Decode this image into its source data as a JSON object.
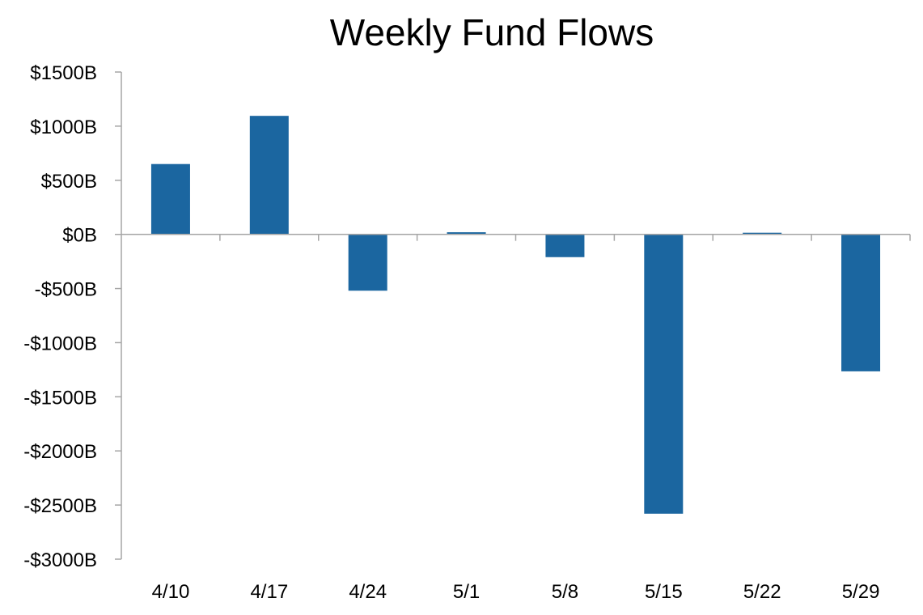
{
  "chart_data": {
    "type": "bar",
    "title": "Weekly Fund Flows",
    "xlabel": "",
    "ylabel": "",
    "categories": [
      "4/10",
      "4/17",
      "4/24",
      "5/1",
      "5/8",
      "5/15",
      "5/22",
      "5/29"
    ],
    "values": [
      650,
      1095,
      -520,
      20,
      -210,
      -2580,
      5,
      -1265
    ],
    "ylim": [
      -3000,
      1500
    ],
    "yticks": [
      1500,
      1000,
      500,
      0,
      -500,
      -1000,
      -1500,
      -2000,
      -2500,
      -3000
    ],
    "ytick_labels": [
      "$1500B",
      "$1000B",
      "$500B",
      "$0B",
      "-$500B",
      "-$1000B",
      "-$1500B",
      "-$2000B",
      "-$2500B",
      "-$3000B"
    ],
    "bar_color": "#1b66a0",
    "axis_color": "#a6a6a6",
    "grid": false,
    "legend": "none"
  }
}
